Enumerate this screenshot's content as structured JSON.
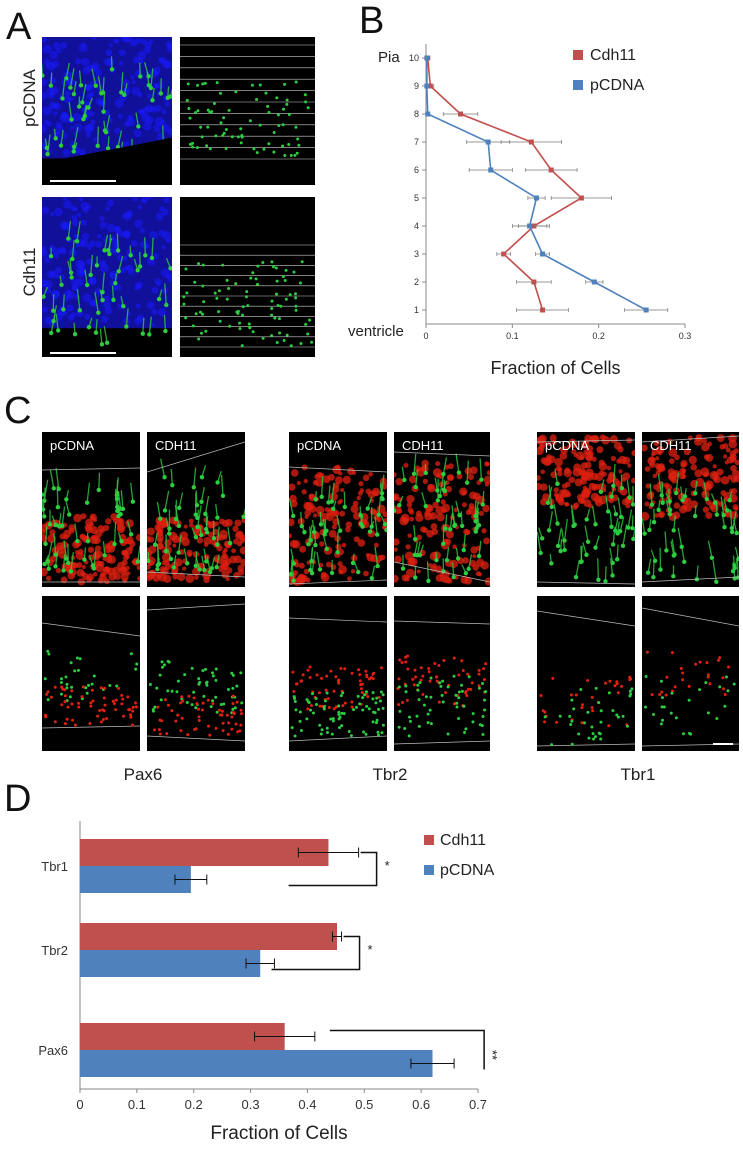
{
  "panels": {
    "a": "A",
    "b": "B",
    "c": "C",
    "d": "D"
  },
  "panel_a": {
    "row_labels": [
      "pCDNA",
      "Cdh11"
    ]
  },
  "panel_c": {
    "tile_labels": [
      "pCDNA",
      "CDH11"
    ],
    "markers": [
      "Pax6",
      "Tbr2",
      "Tbr1"
    ]
  },
  "colors": {
    "cdh11": "#c0504d",
    "pcdna": "#4f81bd",
    "nuclei": "#1a1aff",
    "gfp": "#2ecc40",
    "marker_red": "#e02010"
  },
  "chart_data": [
    {
      "type": "line",
      "orientation": "horizontal-profile",
      "xlabel": "Fraction of Cells",
      "xlim": [
        0,
        0.3
      ],
      "xticks": [
        "0",
        "0.1",
        "0.2",
        "0.3"
      ],
      "ylim": [
        0.5,
        10.5
      ],
      "yticks": [
        "1",
        "2",
        "3",
        "4",
        "5",
        "6",
        "7",
        "8",
        "9",
        "10"
      ],
      "y_top_label": "Pia",
      "y_bottom_label": "ventricle",
      "legend_position": "top-right",
      "series": [
        {
          "name": "Cdh11",
          "bins": [
            1,
            2,
            3,
            4,
            5,
            6,
            7,
            8,
            9,
            10
          ],
          "values": [
            0.135,
            0.125,
            0.09,
            0.125,
            0.18,
            0.145,
            0.122,
            0.04,
            0.005,
            0.002
          ],
          "errors": [
            0.03,
            0.02,
            0.008,
            0.018,
            0.035,
            0.03,
            0.035,
            0.02,
            0.004,
            0.002
          ]
        },
        {
          "name": "pCDNA",
          "bins": [
            1,
            2,
            3,
            4,
            5,
            6,
            7,
            8,
            9,
            10
          ],
          "values": [
            0.255,
            0.195,
            0.135,
            0.12,
            0.128,
            0.075,
            0.072,
            0.002,
            0.001,
            0.001
          ],
          "errors": [
            0.025,
            0.01,
            0.008,
            0.02,
            0.01,
            0.025,
            0.025,
            0.002,
            0.001,
            0.001
          ]
        }
      ]
    },
    {
      "type": "bar",
      "orientation": "horizontal",
      "categories": [
        "Tbr1",
        "Tbr2",
        "Pax6"
      ],
      "xlabel": "Fraction of Cells",
      "xlim": [
        0,
        0.7
      ],
      "xticks": [
        "0",
        "0.1",
        "0.2",
        "0.3",
        "0.4",
        "0.5",
        "0.6",
        "0.7"
      ],
      "legend_position": "top-right",
      "series": [
        {
          "name": "Cdh11",
          "values": [
            0.437,
            0.452,
            0.36
          ],
          "errors": [
            0.053,
            0.008,
            0.053
          ]
        },
        {
          "name": "pCDNA",
          "values": [
            0.195,
            0.317,
            0.62
          ],
          "errors": [
            0.028,
            0.025,
            0.038
          ]
        }
      ],
      "significance": [
        "*",
        "*",
        "**"
      ]
    }
  ]
}
